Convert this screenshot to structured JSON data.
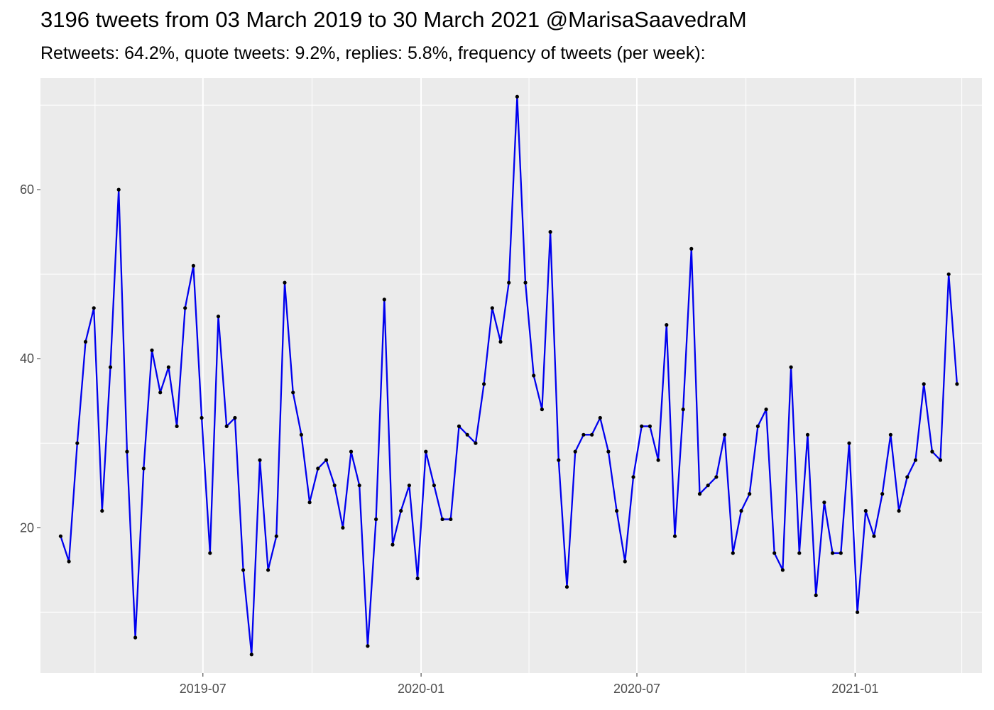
{
  "chart_data": {
    "type": "line",
    "title": "3196 tweets from 03 March 2019 to 30 March 2021 @MarisaSaavedraM",
    "subtitle": "Retweets: 64.2%, quote tweets: 9.2%, replies: 5.8%, frequency of tweets (per week):",
    "xlabel": "",
    "ylabel": "",
    "x_ticks": [
      "2019-07",
      "2020-01",
      "2020-07",
      "2021-01"
    ],
    "y_ticks": [
      20,
      40,
      60
    ],
    "ylim": [
      2.8,
      73.2
    ],
    "xlim": [
      "2019-02-14",
      "2021-04-18"
    ],
    "grid": true,
    "colors": {
      "line": "#0000ee",
      "point": "#000000",
      "panel": "#ebebeb",
      "grid": "#ffffff"
    },
    "series": [
      {
        "x": [
          "2019-03-03",
          "2019-03-10",
          "2019-03-17",
          "2019-03-24",
          "2019-03-31",
          "2019-04-07",
          "2019-04-14",
          "2019-04-21",
          "2019-04-28",
          "2019-05-05",
          "2019-05-12",
          "2019-05-19",
          "2019-05-26",
          "2019-06-02",
          "2019-06-09",
          "2019-06-16",
          "2019-06-23",
          "2019-06-30",
          "2019-07-07",
          "2019-07-14",
          "2019-07-21",
          "2019-07-28",
          "2019-08-04",
          "2019-08-11",
          "2019-08-18",
          "2019-08-25",
          "2019-09-01",
          "2019-09-08",
          "2019-09-15",
          "2019-09-22",
          "2019-09-29",
          "2019-10-06",
          "2019-10-13",
          "2019-10-20",
          "2019-10-27",
          "2019-11-03",
          "2019-11-10",
          "2019-11-17",
          "2019-11-24",
          "2019-12-01",
          "2019-12-08",
          "2019-12-15",
          "2019-12-22",
          "2019-12-29",
          "2020-01-05",
          "2020-01-12",
          "2020-01-19",
          "2020-01-26",
          "2020-02-02",
          "2020-02-09",
          "2020-02-16",
          "2020-02-23",
          "2020-03-01",
          "2020-03-08",
          "2020-03-15",
          "2020-03-22",
          "2020-03-29",
          "2020-04-05",
          "2020-04-12",
          "2020-04-19",
          "2020-04-26",
          "2020-05-03",
          "2020-05-10",
          "2020-05-17",
          "2020-05-24",
          "2020-05-31",
          "2020-06-07",
          "2020-06-14",
          "2020-06-21",
          "2020-06-28",
          "2020-07-05",
          "2020-07-12",
          "2020-07-19",
          "2020-07-26",
          "2020-08-02",
          "2020-08-09",
          "2020-08-16",
          "2020-08-23",
          "2020-08-30",
          "2020-09-06",
          "2020-09-13",
          "2020-09-20",
          "2020-09-27",
          "2020-10-04",
          "2020-10-11",
          "2020-10-18",
          "2020-10-25",
          "2020-11-01",
          "2020-11-08",
          "2020-11-15",
          "2020-11-22",
          "2020-11-29",
          "2020-12-06",
          "2020-12-13",
          "2020-12-20",
          "2020-12-27",
          "2021-01-03",
          "2021-01-10",
          "2021-01-17",
          "2021-01-24",
          "2021-01-31",
          "2021-02-07",
          "2021-02-14",
          "2021-02-21",
          "2021-02-28",
          "2021-03-07",
          "2021-03-14",
          "2021-03-21",
          "2021-03-28"
        ],
        "values": [
          19,
          16,
          30,
          42,
          46,
          22,
          39,
          60,
          29,
          7,
          27,
          41,
          36,
          39,
          32,
          46,
          51,
          33,
          17,
          45,
          32,
          33,
          15,
          5,
          28,
          15,
          19,
          49,
          36,
          31,
          23,
          27,
          28,
          25,
          20,
          29,
          25,
          6,
          21,
          47,
          18,
          22,
          25,
          14,
          29,
          25,
          21,
          21,
          32,
          31,
          30,
          37,
          46,
          42,
          49,
          71,
          49,
          38,
          34,
          55,
          28,
          13,
          29,
          31,
          31,
          33,
          29,
          22,
          16,
          26,
          32,
          32,
          28,
          44,
          19,
          34,
          53,
          24,
          25,
          26,
          31,
          17,
          22,
          24,
          32,
          34,
          17,
          15,
          39,
          17,
          31,
          12,
          23,
          17,
          17,
          30,
          10,
          22,
          19,
          24,
          31,
          22,
          26,
          28,
          37,
          29,
          28,
          50,
          37
        ]
      }
    ]
  }
}
